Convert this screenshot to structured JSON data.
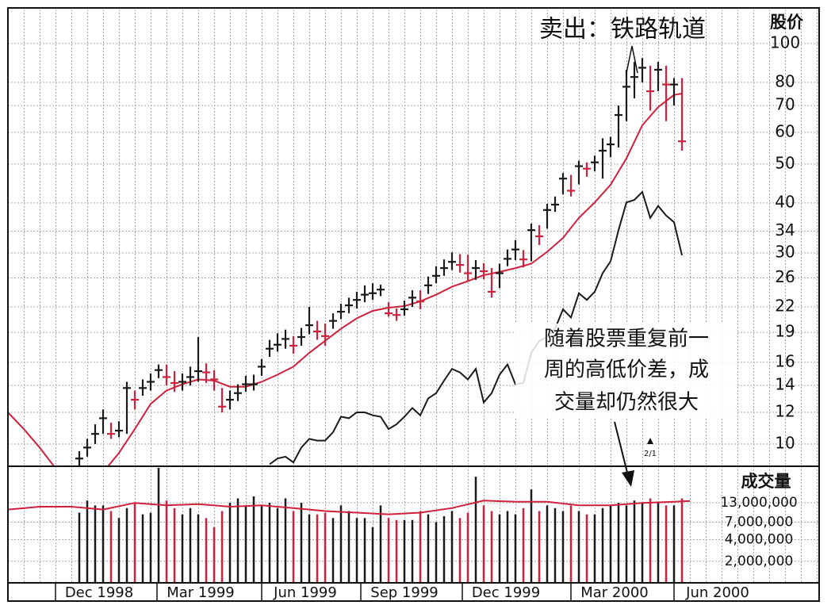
{
  "chart_data": [
    {
      "type": "ohlc",
      "title": "卖出：铁路轨道",
      "y_label": "股价",
      "log_scale": true,
      "grid": true,
      "up_color": "#1a1a1a",
      "down_color": "#d0203c",
      "xlim": [
        0,
        102.3
      ],
      "ylim": [
        8.8,
        122.7
      ],
      "yticks": [
        10,
        12,
        14,
        16,
        19,
        22,
        26,
        30,
        34,
        40,
        50,
        60,
        70,
        80,
        100
      ],
      "x": [
        9,
        10,
        11,
        12,
        13,
        14,
        15,
        16,
        17,
        18,
        19,
        20,
        21,
        22,
        23,
        24,
        25,
        26,
        27,
        28,
        29,
        30,
        31,
        32,
        33,
        34,
        35,
        36,
        37,
        38,
        39,
        40,
        41,
        42,
        43,
        44,
        45,
        46,
        47,
        48,
        49,
        50,
        51,
        52,
        53,
        54,
        55,
        56,
        57,
        58,
        59,
        60,
        61,
        62,
        63,
        64,
        65,
        66,
        67,
        68,
        69,
        70,
        71,
        72,
        73,
        74,
        75,
        76,
        77,
        78,
        79,
        80,
        81,
        82,
        83,
        84,
        85
      ],
      "high": [
        9.6,
        10.3,
        11.2,
        12.2,
        11.3,
        11.4,
        14.3,
        13.6,
        14.5,
        15.0,
        15.8,
        15.8,
        15.2,
        15.0,
        15.6,
        18.5,
        15.9,
        15.3,
        13.8,
        13.6,
        14.1,
        14.8,
        14.9,
        16.3,
        18.2,
        18.9,
        19.3,
        18.6,
        19.5,
        22.0,
        20.3,
        20.0,
        21.2,
        22.4,
        23.2,
        24.0,
        24.9,
        25.2,
        25.0,
        22.6,
        21.8,
        22.8,
        24.2,
        24.2,
        26.2,
        27.8,
        28.9,
        30.1,
        29.8,
        29.7,
        28.8,
        28.3,
        27.5,
        28.2,
        30.6,
        32.3,
        30.5,
        35.5,
        35.2,
        39.8,
        41.5,
        47.5,
        47.0,
        51.0,
        50.5,
        52.5,
        58.0,
        58.5,
        70.0,
        86.0,
        90.0,
        92.0,
        88.0,
        90.0,
        88.0,
        82.0,
        82.0
      ],
      "low": [
        8.8,
        9.3,
        10.0,
        10.6,
        10.3,
        10.4,
        10.6,
        12.2,
        13.2,
        13.6,
        14.6,
        14.0,
        13.5,
        13.6,
        14.0,
        14.3,
        14.2,
        13.6,
        12.0,
        12.2,
        12.8,
        13.5,
        13.6,
        14.8,
        16.5,
        17.0,
        17.3,
        16.8,
        17.6,
        18.8,
        18.2,
        17.6,
        19.4,
        20.5,
        21.2,
        21.8,
        22.6,
        22.9,
        23.4,
        20.8,
        20.3,
        20.9,
        22.0,
        21.7,
        23.7,
        25.2,
        26.3,
        27.2,
        26.8,
        25.5,
        25.7,
        25.8,
        23.2,
        24.5,
        27.8,
        28.8,
        27.6,
        28.6,
        31.4,
        34.5,
        38.0,
        42.0,
        41.5,
        44.5,
        46.5,
        48.0,
        46.0,
        52.0,
        55.0,
        64.0,
        73.0,
        80.0,
        68.0,
        76.0,
        64.0,
        70.0,
        54.0
      ],
      "close": [
        9.2,
        9.8,
        10.6,
        11.6,
        10.6,
        10.8,
        13.8,
        12.9,
        13.8,
        14.3,
        15.3,
        14.7,
        14.2,
        14.3,
        14.7,
        15.2,
        15.1,
        14.5,
        12.4,
        12.9,
        13.4,
        14.1,
        14.1,
        15.6,
        17.3,
        17.7,
        18.3,
        17.6,
        18.5,
        19.8,
        19.1,
        18.6,
        20.3,
        21.4,
        22.2,
        22.9,
        23.6,
        23.8,
        24.3,
        21.2,
        21.0,
        21.7,
        23.2,
        22.7,
        24.9,
        26.3,
        27.5,
        28.5,
        28.0,
        26.7,
        27.5,
        27.0,
        24.0,
        26.7,
        29.0,
        30.6,
        28.9,
        34.2,
        33.0,
        38.4,
        39.6,
        46.0,
        42.9,
        49.4,
        48.7,
        50.5,
        54.0,
        56.0,
        66.3,
        78.0,
        82.5,
        87.0,
        76.0,
        86.0,
        79.0,
        79.0,
        57.0
      ],
      "lines": [
        {
          "color": "#d0203c",
          "x": [
            0,
            2,
            4,
            6,
            8,
            10,
            12,
            14,
            16,
            18,
            20,
            22,
            24,
            26,
            28,
            30,
            32,
            34,
            36,
            38,
            40,
            42,
            44,
            46,
            48,
            50,
            52,
            54,
            56,
            58,
            60,
            62,
            64,
            66,
            68,
            70,
            72,
            74,
            76,
            78,
            80,
            82,
            84,
            85
          ],
          "values": [
            12.0,
            10.9,
            9.8,
            8.7,
            8.1,
            8.0,
            8.5,
            9.5,
            10.9,
            12.6,
            13.6,
            14.1,
            14.5,
            14.4,
            13.9,
            13.9,
            14.3,
            14.9,
            15.6,
            16.9,
            18.1,
            19.4,
            20.6,
            21.5,
            21.9,
            22.1,
            22.7,
            23.6,
            24.7,
            25.5,
            26.4,
            26.9,
            27.5,
            28.2,
            30.2,
            32.7,
            36.7,
            40.1,
            44.4,
            51.7,
            62.5,
            69.4,
            74.4,
            75.0
          ]
        },
        {
          "color": "#1a1a1a",
          "x": [
            33,
            34,
            35,
            36,
            37,
            38,
            39,
            40,
            41,
            42,
            43,
            44,
            45,
            46,
            47,
            48,
            49,
            50,
            51,
            52,
            53,
            54,
            55,
            56,
            57,
            58,
            59,
            60,
            61,
            62,
            63,
            64,
            65,
            66,
            67,
            68,
            69,
            70,
            71,
            72,
            73,
            74,
            75,
            76,
            77,
            78,
            79,
            80,
            81,
            82,
            83,
            84,
            85
          ],
          "values": [
            8.9,
            9.2,
            9.3,
            9.0,
            9.8,
            10.3,
            10.2,
            10.2,
            10.7,
            11.7,
            11.6,
            12.0,
            12.0,
            11.8,
            11.7,
            10.9,
            11.2,
            11.7,
            12.3,
            11.8,
            13.0,
            13.4,
            14.4,
            15.4,
            15.1,
            14.5,
            15.4,
            12.7,
            13.4,
            14.9,
            15.8,
            14.1,
            14.2,
            16.9,
            18.1,
            18.5,
            19.4,
            21.7,
            20.7,
            23.8,
            22.9,
            24.0,
            26.7,
            28.6,
            34.2,
            40.1,
            40.7,
            42.6,
            36.7,
            39.3,
            37.2,
            35.8,
            29.6
          ]
        }
      ],
      "annotation": [
        "随着股票重复前一",
        "周的高低价差，成",
        "交量却仍然很大"
      ],
      "split_label": "2/1"
    },
    {
      "type": "bar",
      "y_label": "成交量",
      "log_scale": true,
      "grid": true,
      "xlim": [
        0,
        102.3
      ],
      "ylim": [
        1000000,
        40000000
      ],
      "yticks": [
        {
          "value": 2000000,
          "label": "2,000,000"
        },
        {
          "value": 4000000,
          "label": "4,000,000"
        },
        {
          "value": 7000000,
          "label": "7,000,000"
        },
        {
          "value": 13000000,
          "label": "13,000,000"
        }
      ],
      "xticks": [
        {
          "value": 6,
          "label": "Dec 1998"
        },
        {
          "value": 18.8,
          "label": "Mar 1999"
        },
        {
          "value": 32,
          "label": "Jun 1999"
        },
        {
          "value": 44.5,
          "label": "Sep 1999"
        },
        {
          "value": 57.3,
          "label": "Dec 1999"
        },
        {
          "value": 71,
          "label": "Mar 2000"
        },
        {
          "value": 84,
          "label": "Jun 2000"
        }
      ],
      "x": [
        9,
        10,
        11,
        12,
        13,
        14,
        15,
        16,
        17,
        18,
        19,
        20,
        21,
        22,
        23,
        24,
        25,
        26,
        27,
        28,
        29,
        30,
        31,
        32,
        33,
        34,
        35,
        36,
        37,
        38,
        39,
        40,
        41,
        42,
        43,
        44,
        45,
        46,
        47,
        48,
        49,
        50,
        51,
        52,
        53,
        54,
        55,
        56,
        57,
        58,
        59,
        60,
        61,
        62,
        63,
        64,
        65,
        66,
        67,
        68,
        69,
        70,
        71,
        72,
        73,
        74,
        75,
        76,
        77,
        78,
        79,
        80,
        81,
        82,
        83,
        84,
        85
      ],
      "values": [
        9500000,
        14000000,
        12000000,
        12000000,
        10000000,
        8000000,
        11000000,
        13000000,
        9000000,
        9500000,
        40000000,
        14000000,
        11000000,
        9000000,
        11000000,
        9000000,
        8000000,
        6000000,
        10000000,
        13000000,
        15000000,
        12000000,
        16000000,
        12000000,
        13000000,
        11000000,
        15000000,
        10000000,
        13000000,
        9000000,
        9000000,
        9500000,
        8000000,
        12000000,
        10000000,
        8000000,
        8000000,
        6000000,
        12000000,
        8000000,
        7500000,
        7500000,
        7500000,
        10000000,
        9000000,
        7000000,
        8500000,
        10000000,
        8000000,
        9500000,
        30000000,
        12000000,
        10000000,
        9000000,
        10000000,
        9000000,
        11000000,
        20000000,
        10000000,
        12000000,
        11000000,
        10000000,
        12000000,
        10000000,
        9000000,
        9000000,
        11000000,
        12000000,
        13000000,
        12000000,
        14000000,
        13000000,
        15000000,
        13000000,
        12000000,
        12000000,
        15000000
      ],
      "line": {
        "color": "#d0203c",
        "x": [
          0,
          4,
          8,
          12,
          16,
          20,
          24,
          28,
          32,
          36,
          40,
          44,
          48,
          52,
          56,
          60,
          64,
          68,
          72,
          76,
          80,
          84,
          86
        ],
        "values": [
          10500000,
          11500000,
          11500000,
          10500000,
          13000000,
          12000000,
          12500000,
          11500000,
          12000000,
          11000000,
          10000000,
          9500000,
          9000000,
          9500000,
          11000000,
          14000000,
          13500000,
          13500000,
          12000000,
          12000000,
          13000000,
          13500000,
          13800000
        ]
      }
    }
  ]
}
